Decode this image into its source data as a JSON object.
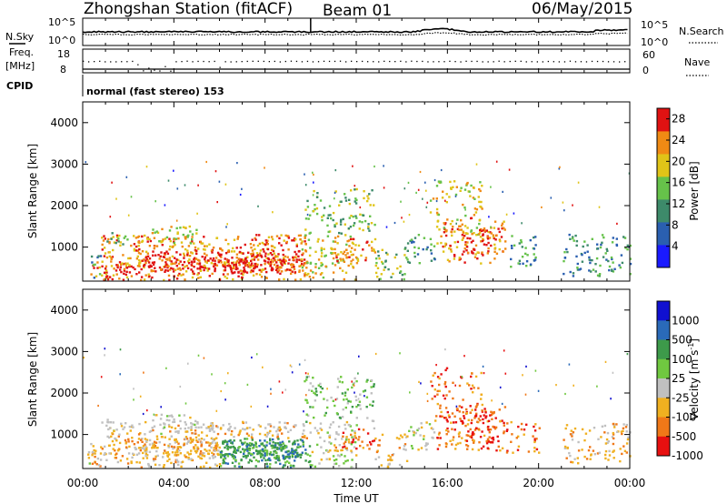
{
  "header": {
    "station": "Zhongshan Station (fitACF)",
    "beam": "Beam 01",
    "date": "06/May/2015"
  },
  "panel_labels": {
    "nsky": "N.Sky",
    "nsearch": "N.Search",
    "freq_line1": "Freq.",
    "freq_line2": "[MHz]",
    "nave": "Nave",
    "cpid": "CPID",
    "cpid_value": "normal (fast stereo) 153",
    "nsky_ticks": [
      "10^5",
      "10^0"
    ],
    "nsearch_ticks": [
      "10^5",
      "10^0"
    ],
    "freq_ticks": [
      "18",
      "8"
    ],
    "nave_ticks": [
      "60",
      "0"
    ]
  },
  "chart_data": [
    {
      "type": "heatmap",
      "name": "power",
      "ylabel": "Slant Range [km]",
      "ylim": [
        180,
        4500
      ],
      "yticks": [
        "1000",
        "2000",
        "3000",
        "4000"
      ],
      "xlim": [
        0,
        24
      ],
      "colorbar": {
        "label": "Power [dB]",
        "ticks": [
          "4",
          "8",
          "12",
          "16",
          "20",
          "24",
          "28"
        ],
        "range": [
          0,
          30
        ],
        "colors": [
          "#1a1aff",
          "#2a5fb0",
          "#3d8a6a",
          "#66c24a",
          "#e0c418",
          "#f08a14",
          "#e01212"
        ]
      }
    },
    {
      "type": "heatmap",
      "name": "velocity",
      "ylabel": "Slant Range [km]",
      "ylim": [
        180,
        4500
      ],
      "yticks": [
        "1000",
        "2000",
        "3000",
        "4000"
      ],
      "xlim": [
        0,
        24
      ],
      "xlabel": "Time UT",
      "xticks": [
        "00:00",
        "04:00",
        "08:00",
        "12:00",
        "16:00",
        "20:00",
        "00:00"
      ],
      "colorbar": {
        "label": "Velocity [m s",
        "label_sup": "-1",
        "label_end": "]",
        "ticks": [
          "1000",
          "500",
          "100",
          "25",
          "-25",
          "-100",
          "-500",
          "-1000"
        ],
        "colors": [
          "#1010d0",
          "#2a6ab8",
          "#3d9a4a",
          "#70c840",
          "#c0c0c0",
          "#f0b020",
          "#f07818",
          "#e81010"
        ]
      }
    }
  ]
}
